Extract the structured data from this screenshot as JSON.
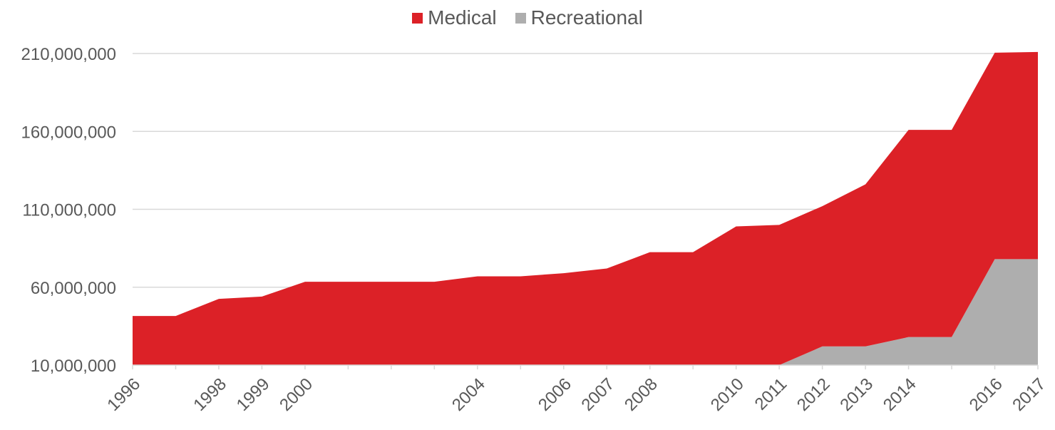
{
  "chart_data": {
    "type": "area",
    "stacked": true,
    "legend_position": "top",
    "grid": "horizontal",
    "ylim": [
      10000000,
      210000000
    ],
    "y_ticks": [
      10000000,
      60000000,
      110000000,
      160000000,
      210000000
    ],
    "y_tick_labels": [
      "10,000,000",
      "60,000,000",
      "110,000,000",
      "160,000,000",
      "210,000,000"
    ],
    "x_tick_labels": [
      "1996",
      "1998",
      "1999",
      "2000",
      "2004",
      "2006",
      "2007",
      "2008",
      "2010",
      "2011",
      "2012",
      "2013",
      "2014",
      "2016",
      "2017"
    ],
    "x_tick_positions": [
      0,
      2,
      3,
      4,
      8,
      10,
      11,
      12,
      14,
      15,
      16,
      17,
      18,
      20,
      21
    ],
    "x_count": 22,
    "series": [
      {
        "name": "Recreational",
        "color": "#AEAEAE",
        "values": [
          0,
          0,
          0,
          0,
          0,
          0,
          0,
          0,
          0,
          0,
          0,
          0,
          0,
          0,
          0,
          0,
          12000000,
          12000000,
          18000000,
          18000000,
          68000000,
          68000000
        ]
      },
      {
        "name": "Medical",
        "color": "#DC2127",
        "values": [
          31500000,
          31500000,
          42500000,
          44000000,
          53500000,
          53500000,
          53500000,
          53500000,
          57000000,
          57000000,
          59000000,
          62000000,
          72500000,
          72500000,
          89000000,
          90000000,
          90000000,
          104000000,
          133000000,
          133000000,
          132500000,
          133000000
        ]
      }
    ]
  }
}
